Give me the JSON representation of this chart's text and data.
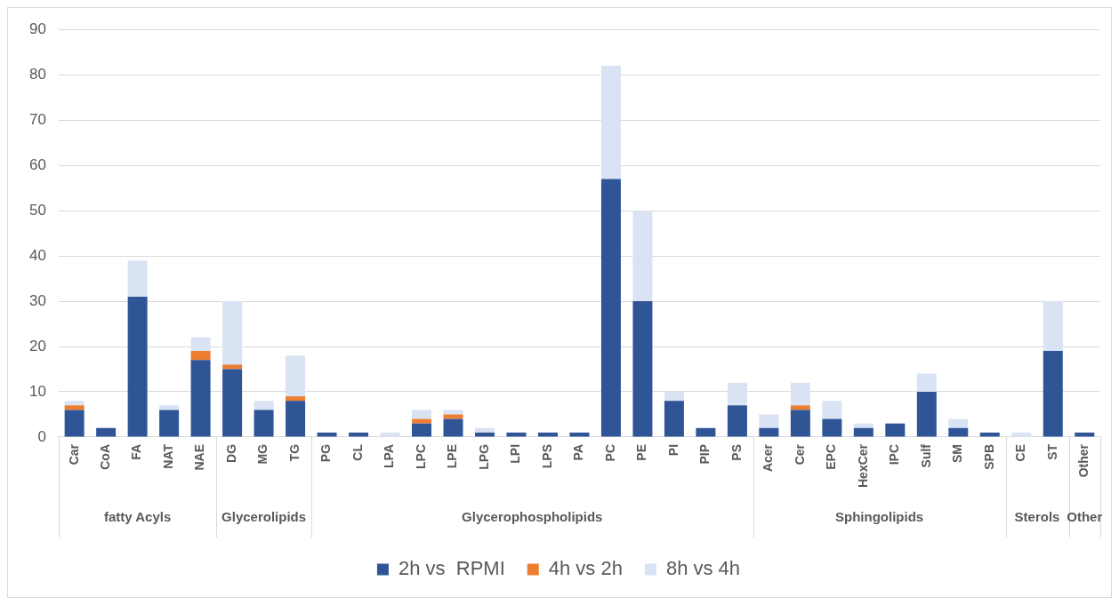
{
  "chart_data": {
    "type": "bar",
    "stacked": true,
    "categories": [
      "Car",
      "CoA",
      "FA",
      "NAT",
      "NAE",
      "DG",
      "MG",
      "TG",
      "PG",
      "CL",
      "LPA",
      "LPC",
      "LPE",
      "LPG",
      "LPI",
      "LPS",
      "PA",
      "PC",
      "PE",
      "PI",
      "PIP",
      "PS",
      "Acer",
      "Cer",
      "EPC",
      "HexCer",
      "IPC",
      "Sulf",
      "SM",
      "SPB",
      "CE",
      "ST",
      "Other"
    ],
    "series": [
      {
        "name": "2h vs  RPMI",
        "color": "#2f5597",
        "values": [
          6,
          2,
          31,
          6,
          17,
          15,
          6,
          8,
          1,
          1,
          0,
          3,
          4,
          1,
          1,
          1,
          1,
          57,
          30,
          8,
          2,
          7,
          2,
          6,
          4,
          2,
          3,
          10,
          2,
          1,
          0,
          19,
          1
        ]
      },
      {
        "name": "4h vs 2h",
        "color": "#ed7d31",
        "values": [
          1,
          0,
          0,
          0,
          2,
          1,
          0,
          1,
          0,
          0,
          0,
          1,
          1,
          0,
          0,
          0,
          0,
          0,
          0,
          0,
          0,
          0,
          0,
          1,
          0,
          0,
          0,
          0,
          0,
          0,
          0,
          0,
          0
        ]
      },
      {
        "name": "8h vs 4h",
        "color": "#dae3f3",
        "values": [
          1,
          0,
          8,
          1,
          3,
          14,
          2,
          9,
          0,
          0,
          1,
          2,
          1,
          1,
          0,
          0,
          0,
          25,
          20,
          2,
          0,
          5,
          3,
          5,
          4,
          1,
          0,
          4,
          2,
          0,
          1,
          11,
          0
        ]
      }
    ],
    "annotations": [
      "fatty Acyls",
      "Glycerolipids",
      "Glycerophospholipids",
      "Sphingolipids",
      "Sterols",
      "Other"
    ],
    "ylim": [
      0,
      90
    ],
    "yticks": [
      0,
      10,
      20,
      30,
      40,
      50,
      60,
      70,
      80,
      90
    ],
    "grid": "y",
    "legend": "bottom"
  }
}
